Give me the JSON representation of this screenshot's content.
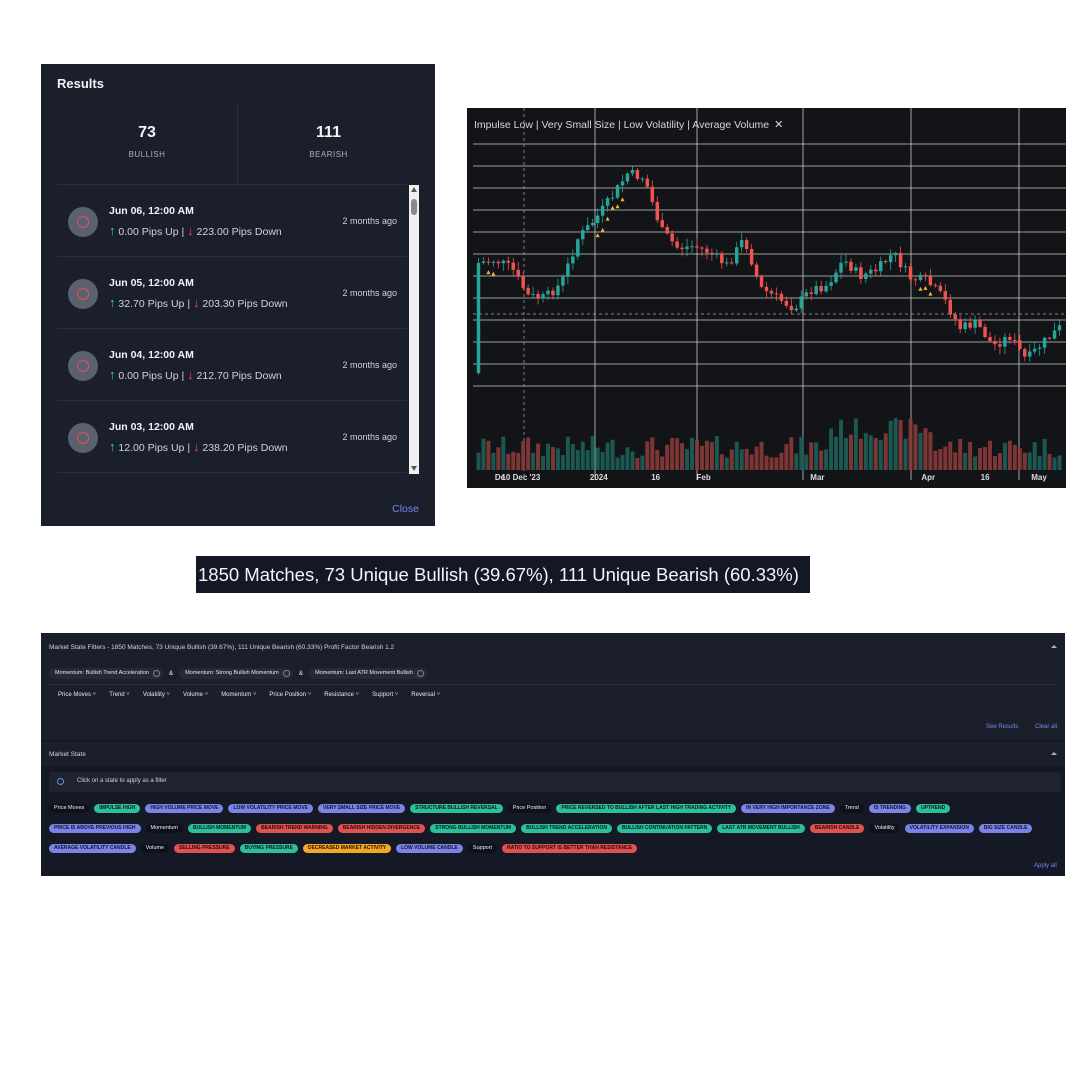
{
  "results": {
    "title": "Results",
    "bullish_count": "73",
    "bullish_label": "BULLISH",
    "bearish_count": "111",
    "bearish_label": "BEARISH",
    "items": [
      {
        "date": "Jun 06, 12:00 AM",
        "up": "0.00 Pips Up",
        "sep": "|",
        "down": "223.00 Pips Down",
        "ago": "2 months ago"
      },
      {
        "date": "Jun 05, 12:00 AM",
        "up": "32.70 Pips Up",
        "sep": "|",
        "down": "203.30 Pips Down",
        "ago": "2 months ago"
      },
      {
        "date": "Jun 04, 12:00 AM",
        "up": "0.00 Pips Up",
        "sep": "|",
        "down": "212.70 Pips Down",
        "ago": "2 months ago"
      },
      {
        "date": "Jun 03, 12:00 AM",
        "up": "12.00 Pips Up",
        "sep": "|",
        "down": "238.20 Pips Down",
        "ago": "2 months ago"
      }
    ],
    "close_label": "Close"
  },
  "chart": {
    "legend": "Impulse Low | Very Small Size | Low Volatility | Average Volume",
    "close_icon": "x-icon",
    "colors": {
      "up": "#26a69a",
      "down": "#ef5350",
      "background": "#121417",
      "grid": "#e8e8e8",
      "marker": "#f5b82e"
    }
  },
  "chart_data": {
    "type": "candlestick",
    "x_tick_labels": [
      "De",
      "10 Dec '23",
      "2024",
      "16",
      "Feb",
      "Mar",
      "Apr",
      "16",
      "May"
    ],
    "x_tick_frac": [
      0.055,
      0.09,
      0.22,
      0.315,
      0.395,
      0.585,
      0.77,
      0.865,
      0.955
    ],
    "crosshair_x_label": "10 Dec '23",
    "has_volume_pane": true,
    "grid": true,
    "notes_markers": "yellow up-arrow signal markers under select candles",
    "close_path": [
      265,
      262,
      270,
      298,
      300,
      285,
      240,
      222,
      200,
      175,
      180,
      232,
      250,
      248,
      255,
      268,
      240,
      290,
      300,
      310,
      292,
      287,
      262,
      278,
      272,
      255,
      280,
      283,
      300,
      330,
      325,
      348,
      338,
      362,
      345,
      330
    ],
    "marker_candles": [
      2,
      8,
      9,
      10,
      19,
      20,
      21
    ]
  },
  "summary": {
    "text": "1850 Matches, 73 Unique Bullish (39.67%), 111 Unique Bearish (60.33%)"
  },
  "filters": {
    "title": "Market State Filters - 1850 Matches, 73 Unique Bullish (39.67%), 111 Unique Bearish (60.33%) Profit Factor Bearish 1.2",
    "active": [
      "Momentum: Bullish Trend Acceleration",
      "Momentum: Strong Bullish Momentum",
      "Momentum: Last ATR Movement Bullish"
    ],
    "amp": "&",
    "dropdowns": [
      "Price Moves",
      "Trend",
      "Volatility",
      "Volume",
      "Momentum",
      "Price Position",
      "Resistance",
      "Support",
      "Reversal"
    ],
    "see_results": "See Results",
    "clear_all": "Clear all"
  },
  "market_state": {
    "title": "Market State",
    "hint": "Click on a state to apply as a filter",
    "rows": [
      [
        {
          "t": "Price Moves",
          "k": "label"
        },
        {
          "t": "IMPULSE HIGH",
          "k": "teal"
        },
        {
          "t": "HIGH VOLUME PRICE MOVE",
          "k": "purple"
        },
        {
          "t": "LOW VOLATILITY PRICE MOVE",
          "k": "purple"
        },
        {
          "t": "VERY SMALL SIZE PRICE MOVE",
          "k": "purple"
        },
        {
          "t": "STRUCTURE BULLISH REVERSAL",
          "k": "teal"
        },
        {
          "t": "Price Position",
          "k": "label"
        },
        {
          "t": "PRICE REVERSED TO BULLISH AFTER LAST HIGH TRADING ACTIVITY",
          "k": "teal"
        },
        {
          "t": "IN VERY HIGH IMPORTANCE ZONE",
          "k": "purple"
        },
        {
          "t": "Trend",
          "k": "label"
        },
        {
          "t": "IS TRENDING",
          "k": "purple"
        },
        {
          "t": "UPTREND",
          "k": "teal"
        }
      ],
      [
        {
          "t": "PRICE IS ABOVE PREVIOUS HIGH",
          "k": "purple"
        },
        {
          "t": "Momentum",
          "k": "label"
        },
        {
          "t": "BULLISH MOMENTUM",
          "k": "teal"
        },
        {
          "t": "BEARISH TREND WARNING",
          "k": "red"
        },
        {
          "t": "BEARISH HIDDEN DIVERGENCE",
          "k": "red"
        },
        {
          "t": "STRONG BULLISH MOMENTUM",
          "k": "teal"
        },
        {
          "t": "BULLISH TREND ACCELERATION",
          "k": "teal"
        },
        {
          "t": "BULLISH CONTINUATION PATTERN",
          "k": "teal"
        },
        {
          "t": "LAST ATR MOVEMENT BULLISH",
          "k": "teal"
        },
        {
          "t": "BEARISH CANDLE",
          "k": "red"
        },
        {
          "t": "Volatility",
          "k": "label"
        },
        {
          "t": "VOLATILITY EXPANSION",
          "k": "purple"
        },
        {
          "t": "BIG SIZE CANDLE",
          "k": "purple"
        }
      ],
      [
        {
          "t": "AVERAGE VOLATILITY CANDLE",
          "k": "purple"
        },
        {
          "t": "Volume",
          "k": "label"
        },
        {
          "t": "SELLING PRESSURE",
          "k": "red"
        },
        {
          "t": "BUYING PRESSURE",
          "k": "teal"
        },
        {
          "t": "DECREASED MARKET ACTIVITY",
          "k": "orange"
        },
        {
          "t": "LOW VOLUME CANDLE",
          "k": "purple"
        },
        {
          "t": "Support",
          "k": "label"
        },
        {
          "t": "RATIO TO SUPPORT IS BETTER THAN RESISTANCE",
          "k": "red"
        }
      ]
    ],
    "apply_all": "Apply all"
  }
}
